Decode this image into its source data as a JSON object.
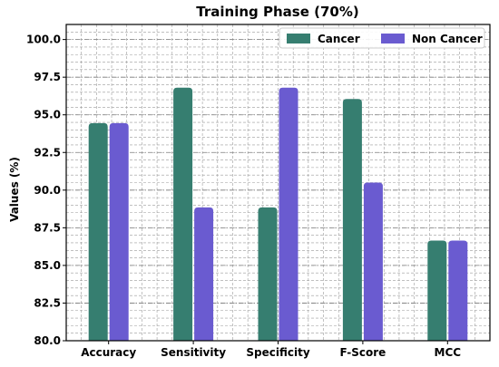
{
  "chart_data": {
    "type": "bar",
    "title": "Training Phase (70%)",
    "xlabel": "",
    "ylabel": "Values (%)",
    "ylim": [
      80.0,
      101.0
    ],
    "yticks": [
      "80.0",
      "82.5",
      "85.0",
      "87.5",
      "90.0",
      "92.5",
      "95.0",
      "97.5",
      "100.0"
    ],
    "ytick_values": [
      80.0,
      82.5,
      85.0,
      87.5,
      90.0,
      92.5,
      95.0,
      97.5,
      100.0
    ],
    "categories": [
      "Accuracy",
      "Sensitivity",
      "Specificity",
      "F-Score",
      "MCC"
    ],
    "series": [
      {
        "name": "Cancer",
        "color": "#367e70",
        "values": [
          94.45,
          96.8,
          88.85,
          96.05,
          86.65
        ]
      },
      {
        "name": "Non Cancer",
        "color": "#6a5bd0",
        "values": [
          94.45,
          88.85,
          96.8,
          90.5,
          86.65
        ]
      }
    ],
    "grid": true,
    "grid_minor": true,
    "legend_position": "top-right"
  }
}
